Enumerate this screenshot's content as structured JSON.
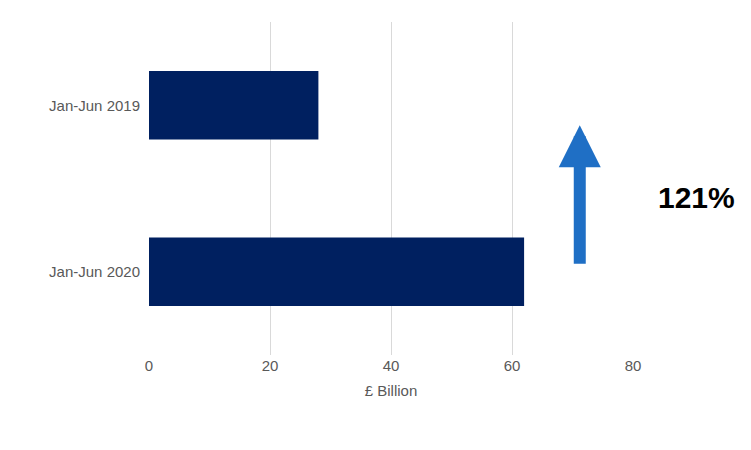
{
  "chart_data": {
    "type": "bar",
    "orientation": "horizontal",
    "categories": [
      "Jan-Jun 2019",
      "Jan-Jun 2020"
    ],
    "values": [
      28,
      62
    ],
    "color": "#002060",
    "x_label": "£ Billion",
    "xlim": [
      0,
      80
    ],
    "xticks": [
      0,
      20,
      40,
      60,
      80
    ],
    "grid": true,
    "annotation": "121%"
  }
}
